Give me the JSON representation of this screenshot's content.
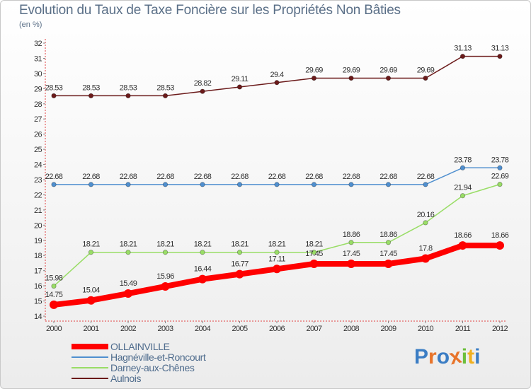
{
  "header": {
    "title": "Evolution du Taux de Taxe Foncière sur les Propriétés Non Bâties",
    "subtitle": "(en %)"
  },
  "chart_data": {
    "type": "line",
    "title": "Evolution du Taux de Taxe Foncière sur les Propriétés Non Bâties",
    "ylabel": "(en %)",
    "xlabel": "",
    "x": [
      "2000",
      "2001",
      "2002",
      "2003",
      "2004",
      "2005",
      "2006",
      "2007",
      "2008",
      "2009",
      "2010",
      "2011",
      "2012"
    ],
    "yticks": [
      14,
      15,
      16,
      17,
      18,
      19,
      20,
      21,
      22,
      23,
      24,
      25,
      26,
      27,
      28,
      29,
      30,
      31,
      32
    ],
    "ylim": [
      14,
      32
    ],
    "grid": false,
    "series": [
      {
        "name": "Aulnois",
        "color": "#6b1a1a",
        "values": [
          28.53,
          28.53,
          28.53,
          28.53,
          28.82,
          29.11,
          29.4,
          29.69,
          29.69,
          29.69,
          29.69,
          31.13,
          31.13
        ],
        "labels": [
          "28.53",
          "28.53",
          "28.53",
          "28.53",
          "28.82",
          "29.11",
          "29.4",
          "29.69",
          "29.69",
          "29.69",
          "29.69",
          "31.13",
          "31.13"
        ]
      },
      {
        "name": "Hagnéville-et-Roncourt",
        "color": "#4f8fcf",
        "values": [
          22.68,
          22.68,
          22.68,
          22.68,
          22.68,
          22.68,
          22.68,
          22.68,
          22.68,
          22.68,
          22.68,
          23.78,
          23.78
        ],
        "labels": [
          "22.68",
          "22.68",
          "22.68",
          "22.68",
          "22.68",
          "22.68",
          "22.68",
          "22.68",
          "22.68",
          "22.68",
          "22.68",
          "23.78",
          "23.78"
        ]
      },
      {
        "name": "Darney-aux-Chênes",
        "color": "#99dd66",
        "values": [
          15.98,
          18.21,
          18.21,
          18.21,
          18.21,
          18.21,
          18.21,
          18.21,
          18.86,
          18.86,
          20.16,
          21.94,
          22.69
        ],
        "labels": [
          "15.98",
          "18.21",
          "18.21",
          "18.21",
          "18.21",
          "18.21",
          "18.21",
          "18.21",
          "18.86",
          "18.86",
          "20.16",
          "21.94",
          "22.69"
        ]
      },
      {
        "name": "OLLAINVILLE",
        "color": "#ff0000",
        "values": [
          14.75,
          15.04,
          15.49,
          15.96,
          16.44,
          16.77,
          17.11,
          17.45,
          17.45,
          17.45,
          17.8,
          18.66,
          18.66
        ],
        "labels": [
          "14.75",
          "15.04",
          "15.49",
          "15.96",
          "16.44",
          "16.77",
          "17.11",
          "17.45",
          "17.45",
          "17.45",
          "17.8",
          "18.66",
          "18.66"
        ]
      }
    ]
  },
  "legend": {
    "items": [
      {
        "name": "OLLAINVILLE",
        "color": "#ff0000"
      },
      {
        "name": "Hagnéville-et-Roncourt",
        "color": "#4f8fcf"
      },
      {
        "name": "Darney-aux-Chênes",
        "color": "#99dd66"
      },
      {
        "name": "Aulnois",
        "color": "#6b1a1a"
      }
    ]
  },
  "logo": {
    "text": "Proxiti",
    "colors": [
      "#3b7dc4",
      "#e8742a",
      "#3b7dc4",
      "#e8742a",
      "#6cbf3c",
      "#f0b020",
      "#3b7dc4"
    ]
  }
}
